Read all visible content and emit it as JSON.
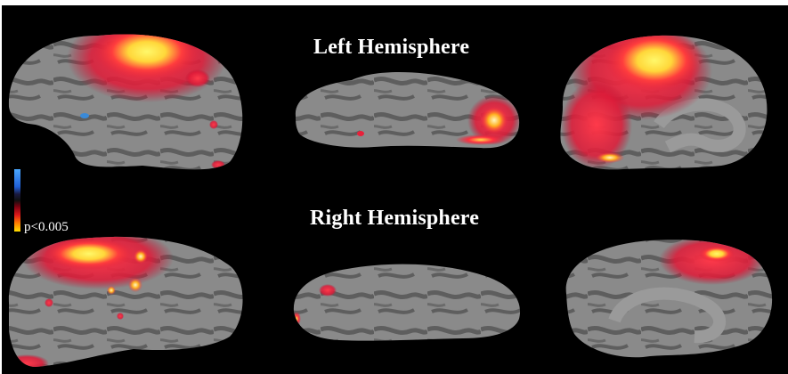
{
  "titles": {
    "left_hemisphere": "Left Hemisphere",
    "right_hemisphere": "Right Hemisphere"
  },
  "legend": {
    "threshold_label": "p<0.005",
    "colors": [
      "#4aa8ff",
      "#2060d8",
      "#e01a1a",
      "#ff7a00",
      "#ffe000"
    ]
  },
  "colors": {
    "background": "#000000",
    "cortex_gray": "#8a8a8a",
    "sulcus_gray": "#5e5e5e",
    "activation_red": "#e8203a",
    "activation_yellow": "#ffe24a"
  }
}
